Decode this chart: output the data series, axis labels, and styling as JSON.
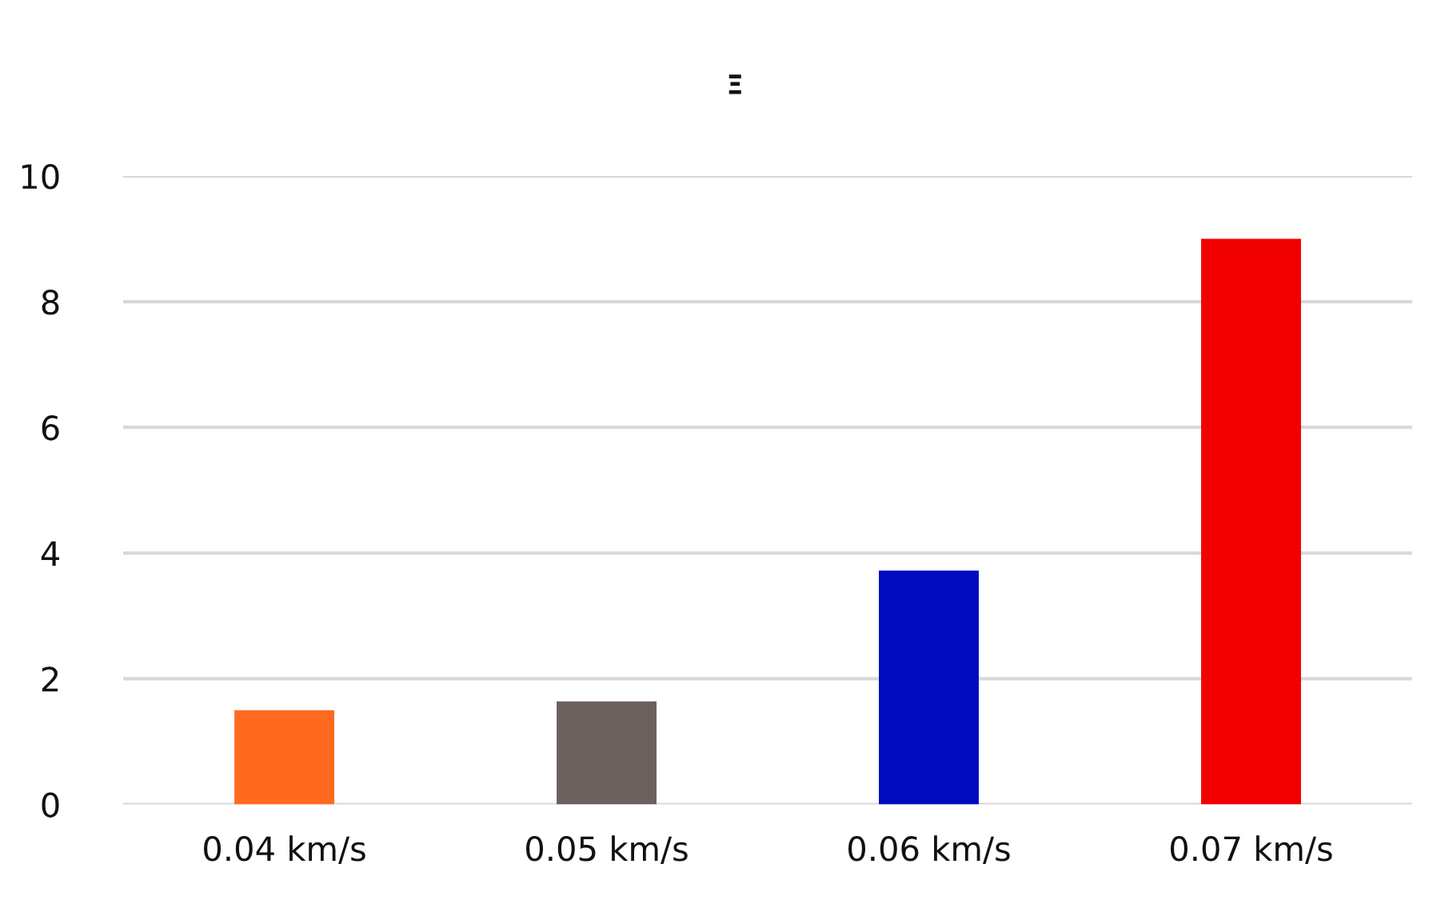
{
  "chart_data": {
    "type": "bar",
    "title": "Ξ",
    "categories": [
      "0.04 km/s",
      "0.05 km/s",
      "0.06 km/s",
      "0.07 km/s"
    ],
    "values": [
      1.5,
      1.64,
      3.72,
      9.0
    ],
    "colors": [
      "#ff6a1f",
      "#6b605e",
      "#000bc0",
      "#f20000"
    ],
    "ylim": [
      0,
      10
    ],
    "yticks": [
      0,
      2,
      4,
      6,
      8,
      10
    ],
    "grid": "y",
    "legend": false
  }
}
